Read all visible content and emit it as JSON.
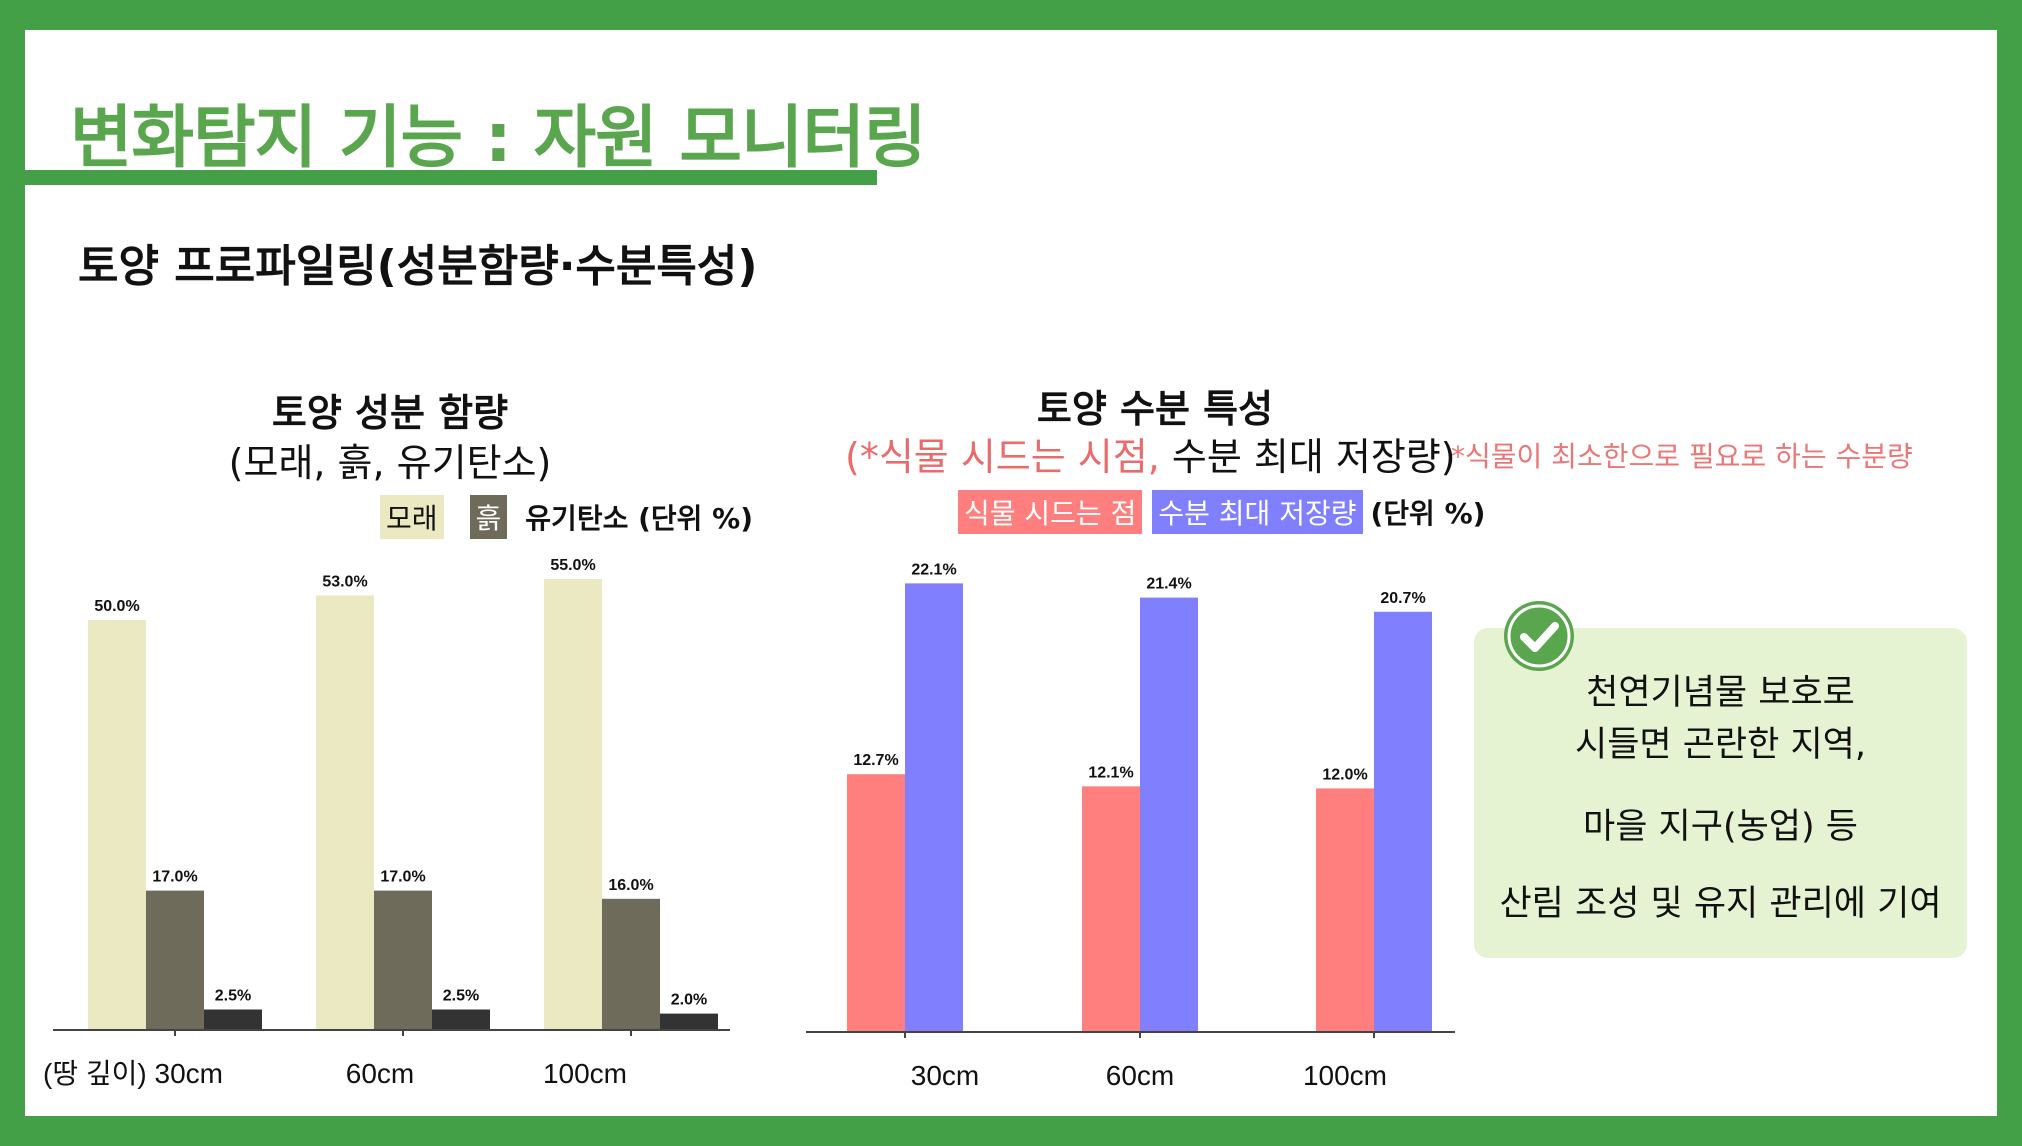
{
  "title": "변화탐지 기능 : 자원 모니터링",
  "subtitle": "토양 프로파일링(성분함량·수분특성)",
  "left_chart": {
    "title": "토양 성분 함량",
    "subtitle": "(모래, 흙, 유기탄소)",
    "legend": [
      "모래",
      "흙"
    ],
    "legend_unit": "유기탄소 (단위 %)"
  },
  "right_chart": {
    "title": "토양 수분 특성",
    "subtitle_part1": "(*식물 시드는 시점,",
    "subtitle_part2": " 수분 최대 저장량)",
    "note": "*식물이 최소한으로 필요로 하는 수분량",
    "legend": [
      "식물 시드는 점",
      "수분 최대 저장량"
    ],
    "legend_unit": "(단위 %)"
  },
  "callout": {
    "lines": [
      "천연기념물 보호로",
      "시들면 곤란한 지역,",
      "마을 지구(농업) 등",
      "산림 조성 및 유지 관리에 기여"
    ]
  },
  "colors": {
    "frame": "#43a047",
    "title": "#5aa64e",
    "sand": "#ebe9c1",
    "soil": "#6e6b5b",
    "carbon": "#333333",
    "wilting": "#ff7f7f",
    "capacity": "#8080ff",
    "callout_bg": "#e6f3d3"
  },
  "icons": {
    "check": "check-circle-icon"
  },
  "chart_data": [
    {
      "type": "bar",
      "categories": [
        "(땅 깊이) 30cm",
        "60cm",
        "100cm"
      ],
      "series": [
        {
          "name": "모래",
          "values": [
            50.0,
            53.0,
            55.0
          ],
          "labels": [
            "50.0%",
            "53.0%",
            "55.0%"
          ]
        },
        {
          "name": "흙",
          "values": [
            17.0,
            17.0,
            16.0
          ],
          "labels": [
            "17.0%",
            "17.0%",
            "16.0%"
          ]
        },
        {
          "name": "유기탄소",
          "values": [
            2.5,
            2.5,
            2.0
          ],
          "labels": [
            "2.5%",
            "2.5%",
            "2.0%"
          ]
        }
      ],
      "title": "토양 성분 함량",
      "ylim": [
        0,
        60
      ]
    },
    {
      "type": "bar",
      "categories": [
        "30cm",
        "60cm",
        "100cm"
      ],
      "series": [
        {
          "name": "식물 시드는 점",
          "values": [
            12.7,
            12.1,
            12.0
          ],
          "labels": [
            "12.7%",
            "12.1%",
            "12.0%"
          ]
        },
        {
          "name": "수분 최대 저장량",
          "values": [
            22.1,
            21.4,
            20.7
          ],
          "labels": [
            "22.1%",
            "21.4%",
            "20.7%"
          ]
        }
      ],
      "title": "토양 수분 특성",
      "ylim": [
        0,
        24
      ]
    }
  ]
}
